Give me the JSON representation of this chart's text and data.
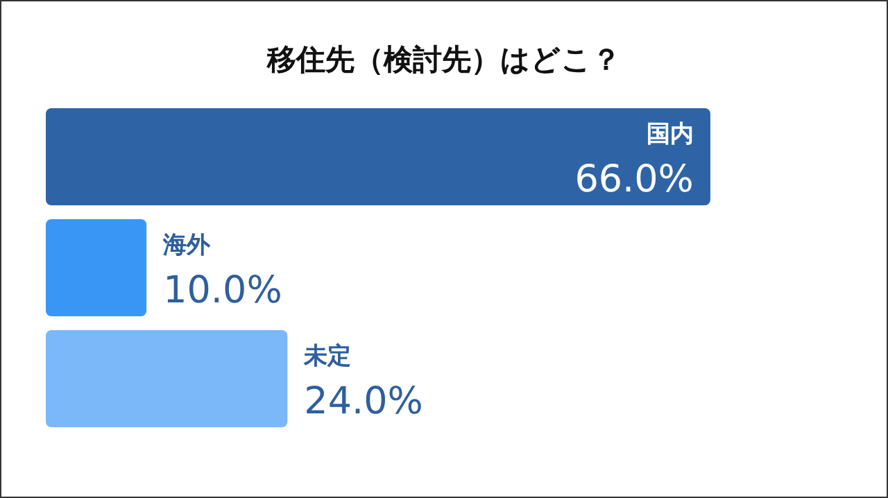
{
  "chart_data": {
    "type": "bar",
    "orientation": "horizontal",
    "title": "移住先（検討先）はどこ？",
    "categories": [
      "国内",
      "海外",
      "未定"
    ],
    "values": [
      66.0,
      10.0,
      24.0
    ],
    "colors": [
      "#2e64a5",
      "#3a96f5",
      "#7ab8f9"
    ],
    "value_labels": [
      "66.0%",
      "10.0%",
      "24.0%"
    ],
    "tick_labels": false,
    "legend": false
  }
}
